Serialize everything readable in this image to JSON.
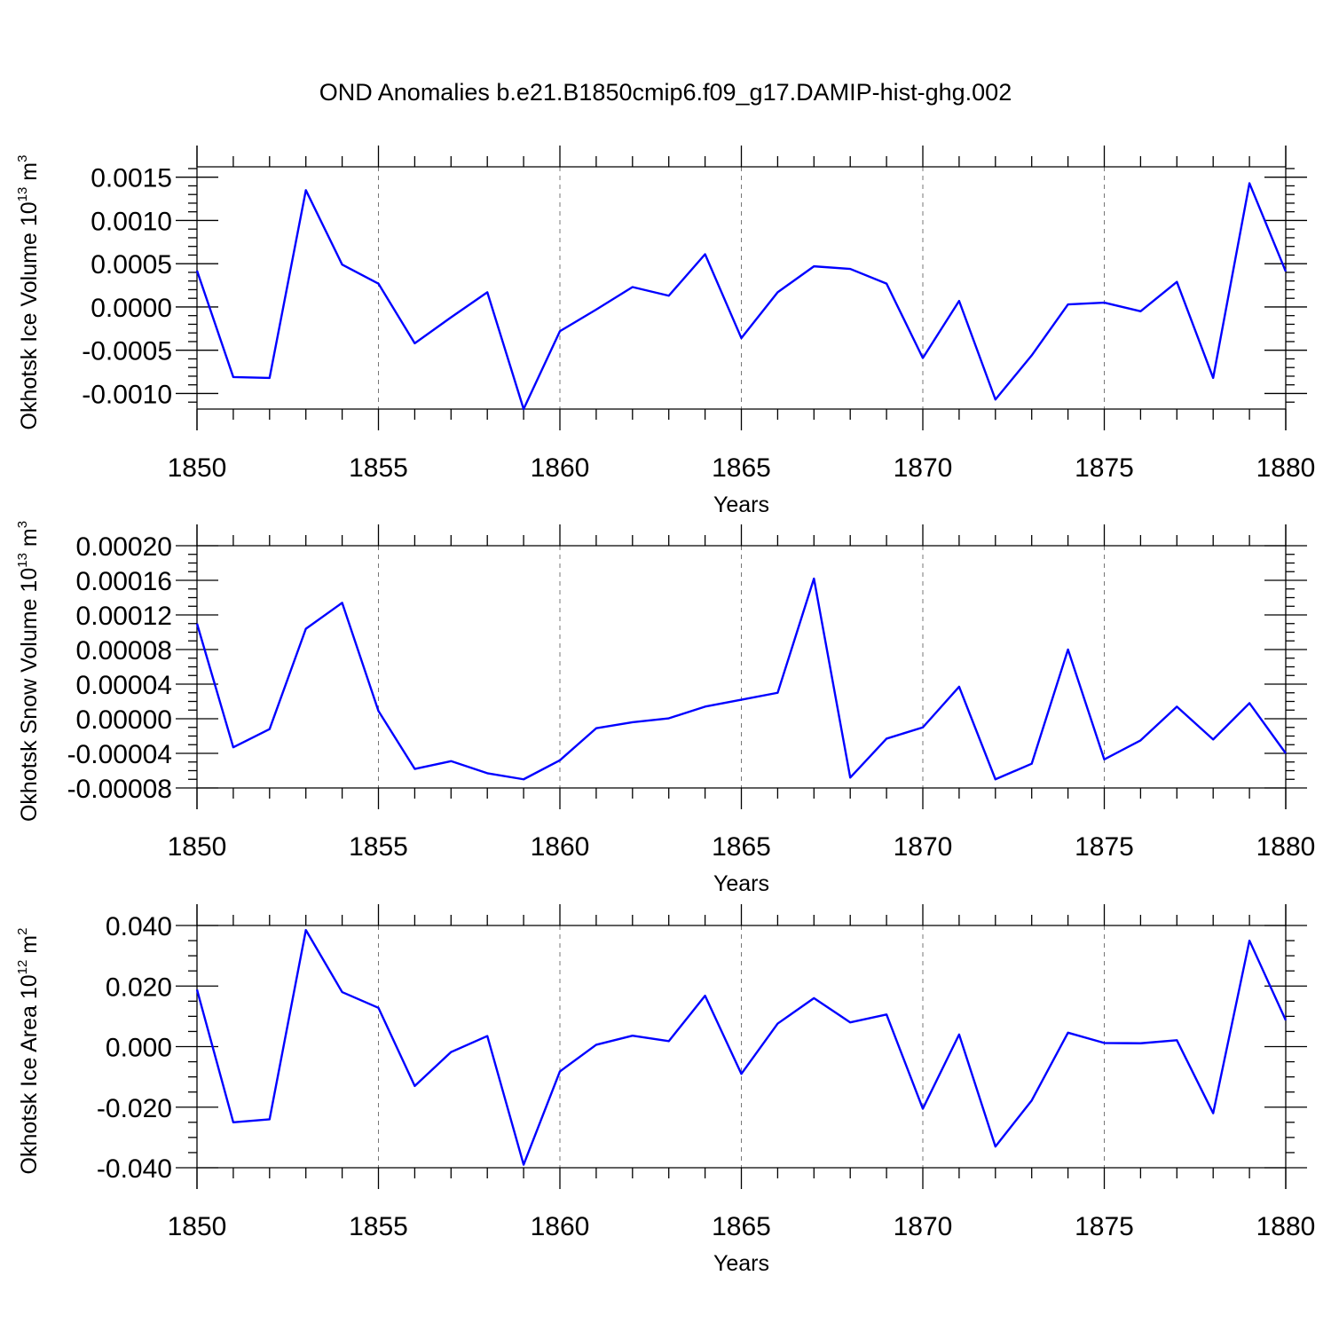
{
  "colors": {
    "line": "#0000ff",
    "axis": "#000000",
    "grid": "#777777"
  },
  "chart_data": [
    {
      "type": "line",
      "title": "OND Anomalies b.e21.B1850cmip6.f09_g17.DAMIP-hist-ghg.002",
      "xlabel": "Years",
      "ylabel": "Okhotsk Ice Volume 10",
      "ylabel_exp": "13",
      "ylabel_unit": " m",
      "ylabel_unit_exp": "3",
      "xlim": [
        1850,
        1880
      ],
      "ylim": [
        -0.00118,
        0.00162
      ],
      "x_ticks": [
        1850,
        1855,
        1860,
        1865,
        1870,
        1875,
        1880
      ],
      "x_tick_labels": [
        "1850",
        "1855",
        "1860",
        "1865",
        "1870",
        "1875",
        "1880"
      ],
      "y_ticks": [
        -0.001,
        -0.0005,
        0.0,
        0.0005,
        0.001,
        0.0015
      ],
      "y_tick_labels": [
        "-0.0010",
        "-0.0005",
        "0.0000",
        "0.0005",
        "0.0010",
        "0.0015"
      ],
      "y_minor_step": 0.0001,
      "x": [
        1850,
        1851,
        1852,
        1853,
        1854,
        1855,
        1856,
        1857,
        1858,
        1859,
        1860,
        1861,
        1862,
        1863,
        1864,
        1865,
        1866,
        1867,
        1868,
        1869,
        1870,
        1871,
        1872,
        1873,
        1874,
        1875,
        1876,
        1877,
        1878,
        1879,
        1880
      ],
      "series": [
        {
          "name": "Okhotsk Ice Volume",
          "values": [
            0.00042,
            -0.00081,
            -0.00082,
            0.00135,
            0.00049,
            0.00027,
            -0.00042,
            -0.00012,
            0.00017,
            -0.00118,
            -0.00028,
            -3e-05,
            0.00023,
            0.00013,
            0.00061,
            -0.00036,
            0.00017,
            0.00047,
            0.00044,
            0.00027,
            -0.00059,
            7e-05,
            -0.00107,
            -0.00056,
            3e-05,
            5e-05,
            -5e-05,
            0.00029,
            -0.00082,
            0.00143,
            0.00041
          ]
        }
      ]
    },
    {
      "type": "line",
      "xlabel": "Years",
      "ylabel": "Okhotsk Snow Volume 10",
      "ylabel_exp": "13",
      "ylabel_unit": " m",
      "ylabel_unit_exp": "3",
      "xlim": [
        1850,
        1880
      ],
      "ylim": [
        -8e-05,
        0.0002
      ],
      "x_ticks": [
        1850,
        1855,
        1860,
        1865,
        1870,
        1875,
        1880
      ],
      "x_tick_labels": [
        "1850",
        "1855",
        "1860",
        "1865",
        "1870",
        "1875",
        "1880"
      ],
      "y_ticks": [
        -8e-05,
        -4e-05,
        0.0,
        4e-05,
        8e-05,
        0.00012,
        0.00016,
        0.0002
      ],
      "y_tick_labels": [
        "-0.00008",
        "-0.00004",
        "0.00000",
        "0.00004",
        "0.00008",
        "0.00012",
        "0.00016",
        "0.00020"
      ],
      "y_minor_step": 1e-05,
      "x": [
        1850,
        1851,
        1852,
        1853,
        1854,
        1855,
        1856,
        1857,
        1858,
        1859,
        1860,
        1861,
        1862,
        1863,
        1864,
        1865,
        1866,
        1867,
        1868,
        1869,
        1870,
        1871,
        1872,
        1873,
        1874,
        1875,
        1876,
        1877,
        1878,
        1879,
        1880
      ],
      "series": [
        {
          "name": "Okhotsk Snow Volume",
          "values": [
            0.00011,
            -3.3e-05,
            -1.2e-05,
            0.000104,
            0.000134,
            9e-06,
            -5.8e-05,
            -4.9e-05,
            -6.3e-05,
            -7e-05,
            -4.8e-05,
            -1.1e-05,
            -4e-06,
            5e-07,
            1.4e-05,
            2.2e-05,
            3e-05,
            0.000162,
            -6.8e-05,
            -2.3e-05,
            -1e-05,
            3.7e-05,
            -7e-05,
            -5.2e-05,
            8e-05,
            -4.7e-05,
            -2.5e-05,
            1.4e-05,
            -2.4e-05,
            1.8e-05,
            -4e-05
          ]
        }
      ]
    },
    {
      "type": "line",
      "xlabel": "Years",
      "ylabel": "Okhotsk Ice Area 10",
      "ylabel_exp": "12",
      "ylabel_unit": " m",
      "ylabel_unit_exp": "2",
      "xlim": [
        1850,
        1880
      ],
      "ylim": [
        -0.04,
        0.04
      ],
      "x_ticks": [
        1850,
        1855,
        1860,
        1865,
        1870,
        1875,
        1880
      ],
      "x_tick_labels": [
        "1850",
        "1855",
        "1860",
        "1865",
        "1870",
        "1875",
        "1880"
      ],
      "y_ticks": [
        -0.04,
        -0.02,
        0.0,
        0.02,
        0.04
      ],
      "y_tick_labels": [
        "-0.040",
        "-0.020",
        "0.000",
        "0.020",
        "0.040"
      ],
      "y_minor_step": 0.005,
      "x": [
        1850,
        1851,
        1852,
        1853,
        1854,
        1855,
        1856,
        1857,
        1858,
        1859,
        1860,
        1861,
        1862,
        1863,
        1864,
        1865,
        1866,
        1867,
        1868,
        1869,
        1870,
        1871,
        1872,
        1873,
        1874,
        1875,
        1876,
        1877,
        1878,
        1879,
        1880
      ],
      "series": [
        {
          "name": "Okhotsk Ice Area",
          "values": [
            0.0188,
            -0.025,
            -0.024,
            0.0385,
            0.018,
            0.0128,
            -0.013,
            -0.0018,
            0.0035,
            -0.039,
            -0.0082,
            0.0006,
            0.0036,
            0.0018,
            0.0168,
            -0.009,
            0.0076,
            0.016,
            0.008,
            0.0106,
            -0.0205,
            0.004,
            -0.033,
            -0.0178,
            0.0046,
            0.0012,
            0.0011,
            0.0021,
            -0.022,
            0.035,
            0.0087
          ]
        }
      ]
    }
  ]
}
